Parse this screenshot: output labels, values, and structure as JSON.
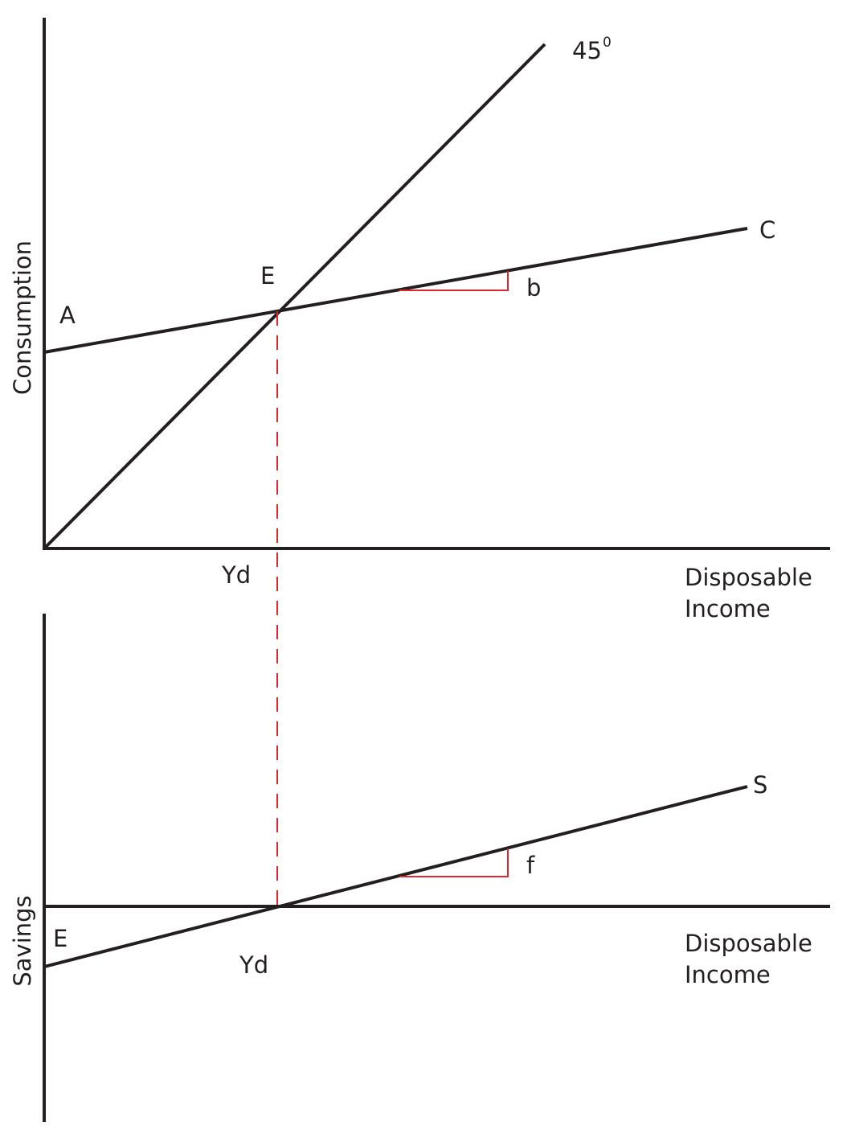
{
  "top_panel": {
    "y_axis_label": "Consumption",
    "line_45_label": {
      "text": "45",
      "superscript": "0"
    },
    "consumption_label": "C",
    "intercept_label": "A",
    "equilibrium_label": "E",
    "slope_label": "b",
    "x_marker_label": "Yd",
    "x_axis_label": [
      "Disposable",
      "Income"
    ]
  },
  "bottom_panel": {
    "y_axis_label": "Savings",
    "savings_label": "S",
    "intercept_label": "E",
    "slope_label": "f",
    "x_marker_label": "Yd",
    "x_axis_label": [
      "Disposable",
      "Income"
    ]
  }
}
